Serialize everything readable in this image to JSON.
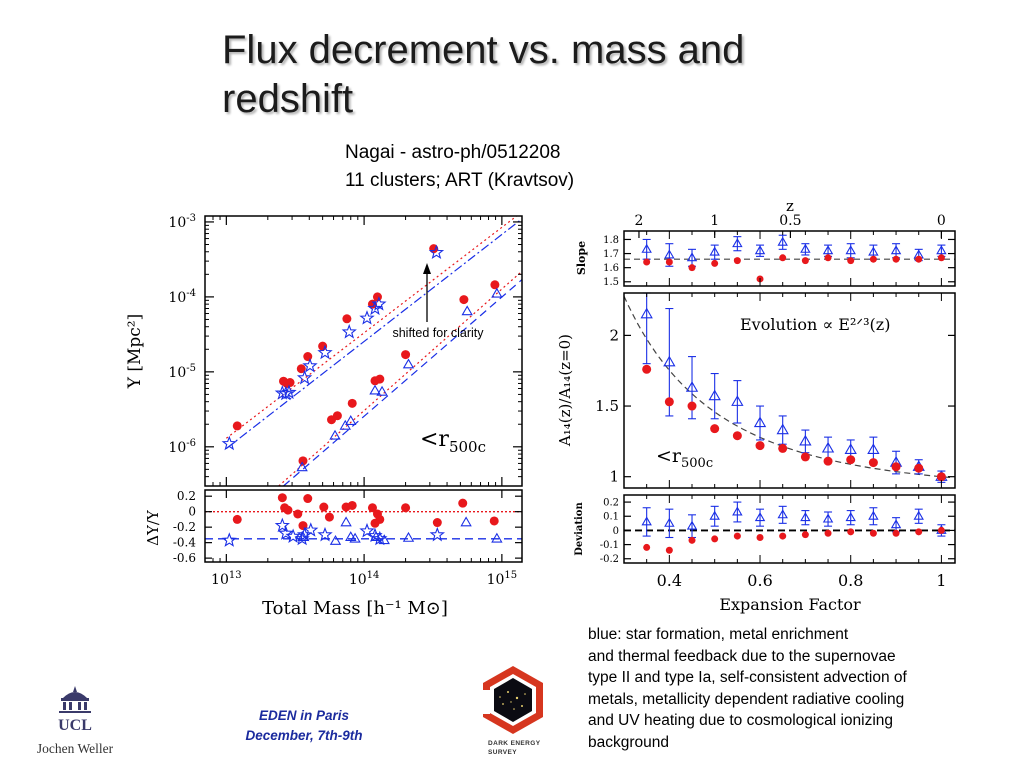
{
  "slide": {
    "title": "Flux decrement vs. mass and redshift",
    "subtitle_lines": [
      "Nagai - astro-ph/0512208",
      "11 clusters;  ART (Kravtsov)"
    ],
    "description_lines": [
      "blue: star formation, metal enrichment",
      "and thermal feedback due to the supernovae",
      "type II and type Ia, self-consistent advection of",
      "metals, metallicity dependent radiative cooling",
      "and UV heating due to cosmological ionizing",
      "background"
    ],
    "event_lines": [
      "EDEN in Paris",
      "December, 7th-9th"
    ],
    "author": "Jochen Weller",
    "ucl_logo_text": "UCL",
    "des_logo_lines": [
      "DARK ENERGY",
      "SURVEY"
    ],
    "arrow_annotation": "shifted for clarity",
    "colors": {
      "red": "#e8181c",
      "blue": "#1a2fe6",
      "event_blue": "#1b2b9e",
      "logo_red": "#d6361f"
    }
  },
  "chart_data": [
    {
      "type": "scatter",
      "panel": "Y-M relation",
      "log_x": true,
      "log_y": true,
      "xlim": [
        7000000000000.0,
        1400000000000000.0
      ],
      "ylim": [
        3e-07,
        0.0012
      ],
      "x_ticks": [
        {
          "v": 10000000000000.0,
          "base": "10",
          "exp": "13"
        },
        {
          "v": 100000000000000.0,
          "base": "10",
          "exp": "14"
        },
        {
          "v": 1000000000000000.0,
          "base": "10",
          "exp": "15"
        }
      ],
      "y_ticks": [
        {
          "v": 0.001,
          "base": "10",
          "exp": "-3"
        },
        {
          "v": 0.0001,
          "base": "10",
          "exp": "-4"
        },
        {
          "v": 1e-05,
          "base": "10",
          "exp": "-5"
        },
        {
          "v": 1e-06,
          "base": "10",
          "exp": "-6"
        }
      ],
      "ylabel": "Y [Mpc²]",
      "legend_text": "<r",
      "legend_sub": "500c",
      "series": [
        {
          "marker": "circle",
          "color": "#e8181c",
          "points": [
            [
              12000000000000.0,
              1.9e-06
            ],
            [
              26000000000000.0,
              7.5e-06
            ],
            [
              27500000000000.0,
              7e-06
            ],
            [
              29000000000000.0,
              7.2e-06
            ],
            [
              35000000000000.0,
              1.1e-05
            ],
            [
              39000000000000.0,
              1.6e-05
            ],
            [
              50000000000000.0,
              2.2e-05
            ],
            [
              75000000000000.0,
              5.1e-05
            ],
            [
              115000000000000.0,
              8e-05
            ],
            [
              125000000000000.0,
              0.0001
            ],
            [
              320000000000000.0,
              0.00044
            ],
            [
              36000000000000.0,
              6.5e-07
            ],
            [
              58000000000000.0,
              2.3e-06
            ],
            [
              64000000000000.0,
              2.6e-06
            ],
            [
              82000000000000.0,
              3.8e-06
            ],
            [
              120000000000000.0,
              7.6e-06
            ],
            [
              130000000000000.0,
              8e-06
            ],
            [
              200000000000000.0,
              1.7e-05
            ],
            [
              530000000000000.0,
              9.2e-05
            ],
            [
              890000000000000.0,
              0.000145
            ]
          ]
        },
        {
          "marker": "star",
          "color": "#1a2fe6",
          "points": [
            [
              10500000000000.0,
              1.1e-06
            ],
            [
              25500000000000.0,
              5.2e-06
            ],
            [
              27000000000000.0,
              5.1e-06
            ],
            [
              28500000000000.0,
              5.3e-06
            ],
            [
              37000000000000.0,
              8.3e-06
            ],
            [
              40500000000000.0,
              1.2e-05
            ],
            [
              52000000000000.0,
              1.8e-05
            ],
            [
              78000000000000.0,
              3.4e-05
            ],
            [
              105000000000000.0,
              5.2e-05
            ],
            [
              120000000000000.0,
              7e-05
            ],
            [
              128000000000000.0,
              8e-05
            ],
            [
              335000000000000.0,
              0.00039
            ]
          ]
        },
        {
          "marker": "triangle",
          "color": "#1a2fe6",
          "points": [
            [
              35500000000000.0,
              5.3e-07
            ],
            [
              61500000000000.0,
              1.4e-06
            ],
            [
              73000000000000.0,
              1.9e-06
            ],
            [
              80000000000000.0,
              2.2e-06
            ],
            [
              120000000000000.0,
              5.6e-06
            ],
            [
              135000000000000.0,
              5.4e-06
            ],
            [
              210000000000000.0,
              1.25e-05
            ],
            [
              560000000000000.0,
              6.4e-05
            ],
            [
              920000000000000.0,
              0.00011
            ]
          ]
        }
      ],
      "fit_lines": [
        {
          "style": "dotted",
          "color": "#e8181c",
          "from": [
            10000000000000.0,
            1.3e-06
          ],
          "to": [
            1400000000000000.0,
            0.00136
          ]
        },
        {
          "style": "dotted",
          "color": "#e8181c",
          "from": [
            24000000000000.0,
            3e-07
          ],
          "to": [
            1400000000000000.0,
            0.00022
          ]
        },
        {
          "style": "dashdot",
          "color": "#1a2fe6",
          "from": [
            10000000000000.0,
            9.5e-07
          ],
          "to": [
            1400000000000000.0,
            0.0011
          ]
        },
        {
          "style": "dashed",
          "color": "#1a2fe6",
          "from": [
            26000000000000.0,
            3e-07
          ],
          "to": [
            1400000000000000.0,
            0.00017
          ]
        }
      ]
    },
    {
      "type": "scatter",
      "panel": "Y-M residuals",
      "log_x": true,
      "xlim": [
        7000000000000.0,
        1400000000000000.0
      ],
      "ylim": [
        -0.65,
        0.28
      ],
      "y_ticks": [
        "0.2",
        "0",
        "-0.2",
        "-0.4",
        "-0.6"
      ],
      "xlabel": "Total Mass [h⁻¹ M⊙]",
      "ylabel": "ΔY/Y",
      "hlines": [
        {
          "y": 0,
          "color": "#e8181c",
          "style": "dotted"
        },
        {
          "y": -0.35,
          "color": "#1a2fe6",
          "style": "dashed"
        }
      ],
      "series": [
        {
          "marker": "circle",
          "color": "#e8181c",
          "points": [
            [
              12000000000000.0,
              -0.1
            ],
            [
              25500000000000.0,
              0.18
            ],
            [
              26500000000000.0,
              0.05
            ],
            [
              28000000000000.0,
              0.02
            ],
            [
              33000000000000.0,
              -0.03
            ],
            [
              36000000000000.0,
              -0.18
            ],
            [
              39000000000000.0,
              0.17
            ],
            [
              51000000000000.0,
              0.06
            ],
            [
              56000000000000.0,
              -0.07
            ],
            [
              74000000000000.0,
              0.06
            ],
            [
              82000000000000.0,
              0.08
            ],
            [
              115000000000000.0,
              0.05
            ],
            [
              125000000000000.0,
              -0.03
            ],
            [
              130000000000000.0,
              -0.1
            ],
            [
              120000000000000.0,
              -0.15
            ],
            [
              200000000000000.0,
              0.05
            ],
            [
              340000000000000.0,
              -0.14
            ],
            [
              520000000000000.0,
              0.11
            ],
            [
              880000000000000.0,
              -0.12
            ]
          ]
        },
        {
          "marker": "star",
          "color": "#1a2fe6",
          "points": [
            [
              10500000000000.0,
              -0.37
            ],
            [
              25500000000000.0,
              -0.18
            ],
            [
              27000000000000.0,
              -0.28
            ],
            [
              30500000000000.0,
              -0.32
            ],
            [
              35500000000000.0,
              -0.35
            ],
            [
              37000000000000.0,
              -0.3
            ],
            [
              41000000000000.0,
              -0.24
            ],
            [
              52000000000000.0,
              -0.3
            ],
            [
              105000000000000.0,
              -0.25
            ],
            [
              120000000000000.0,
              -0.31
            ],
            [
              130000000000000.0,
              -0.35
            ],
            [
              340000000000000.0,
              -0.3
            ]
          ]
        },
        {
          "marker": "triangle",
          "color": "#1a2fe6",
          "points": [
            [
              36000000000000.0,
              -0.33
            ],
            [
              62000000000000.0,
              -0.38
            ],
            [
              74000000000000.0,
              -0.14
            ],
            [
              80000000000000.0,
              -0.33
            ],
            [
              86000000000000.0,
              -0.35
            ],
            [
              122000000000000.0,
              -0.33
            ],
            [
              140000000000000.0,
              -0.37
            ],
            [
              210000000000000.0,
              -0.34
            ],
            [
              550000000000000.0,
              -0.14
            ],
            [
              920000000000000.0,
              -0.35
            ]
          ]
        }
      ]
    },
    {
      "type": "scatter",
      "panel": "Slope",
      "top_axis_label": "z",
      "top_ticks": [
        {
          "label": "2",
          "a": 0.333
        },
        {
          "label": "1",
          "a": 0.5
        },
        {
          "label": "0.5",
          "a": 0.667
        },
        {
          "label": "0",
          "a": 1.0
        }
      ],
      "xlim": [
        0.3,
        1.03
      ],
      "ylim": [
        1.47,
        1.86
      ],
      "y_ticks": [
        "1.8",
        "1.7",
        "1.6",
        "1.5"
      ],
      "ylabel": "Slope",
      "hline": 1.66,
      "red_points": [
        [
          0.35,
          1.64
        ],
        [
          0.4,
          1.64
        ],
        [
          0.45,
          1.6
        ],
        [
          0.5,
          1.63
        ],
        [
          0.55,
          1.65
        ],
        [
          0.6,
          1.52
        ],
        [
          0.65,
          1.67
        ],
        [
          0.7,
          1.65
        ],
        [
          0.75,
          1.67
        ],
        [
          0.8,
          1.65
        ],
        [
          0.85,
          1.66
        ],
        [
          0.9,
          1.66
        ],
        [
          0.95,
          1.66
        ],
        [
          1.0,
          1.67
        ]
      ],
      "blue_points": [
        [
          0.35,
          1.73,
          0.07
        ],
        [
          0.4,
          1.69,
          0.08
        ],
        [
          0.45,
          1.67,
          0.06
        ],
        [
          0.5,
          1.71,
          0.05
        ],
        [
          0.55,
          1.77,
          0.05
        ],
        [
          0.6,
          1.72,
          0.04
        ],
        [
          0.65,
          1.78,
          0.05
        ],
        [
          0.7,
          1.73,
          0.04
        ],
        [
          0.75,
          1.72,
          0.04
        ],
        [
          0.8,
          1.72,
          0.05
        ],
        [
          0.85,
          1.71,
          0.05
        ],
        [
          0.9,
          1.72,
          0.05
        ],
        [
          0.95,
          1.69,
          0.04
        ],
        [
          1.0,
          1.72,
          0.04
        ]
      ]
    },
    {
      "type": "scatter",
      "panel": "Evolution",
      "xlim": [
        0.3,
        1.03
      ],
      "ylim": [
        0.92,
        2.3
      ],
      "y_ticks": [
        "2",
        "1.5",
        "1"
      ],
      "ylabel": "A₁₄(z)/A₁₄(z=0)",
      "annotation": "Evolution ∝ E²ᐟ³(z)",
      "legend_text": "<r",
      "legend_sub": "500c",
      "model": "E^(2/3)(z)",
      "red_points": [
        [
          0.35,
          1.76
        ],
        [
          0.4,
          1.53
        ],
        [
          0.45,
          1.5
        ],
        [
          0.5,
          1.34
        ],
        [
          0.55,
          1.29
        ],
        [
          0.6,
          1.22
        ],
        [
          0.65,
          1.2
        ],
        [
          0.7,
          1.14
        ],
        [
          0.75,
          1.11
        ],
        [
          0.8,
          1.12
        ],
        [
          0.85,
          1.1
        ],
        [
          0.9,
          1.07
        ],
        [
          0.95,
          1.06
        ],
        [
          1.0,
          1.0
        ]
      ],
      "blue_points": [
        [
          0.35,
          2.15,
          0.35
        ],
        [
          0.4,
          1.81,
          0.38
        ],
        [
          0.45,
          1.63,
          0.22
        ],
        [
          0.5,
          1.57,
          0.16
        ],
        [
          0.55,
          1.53,
          0.15
        ],
        [
          0.6,
          1.38,
          0.12
        ],
        [
          0.65,
          1.33,
          0.1
        ],
        [
          0.7,
          1.25,
          0.08
        ],
        [
          0.75,
          1.2,
          0.08
        ],
        [
          0.8,
          1.19,
          0.07
        ],
        [
          0.85,
          1.19,
          0.09
        ],
        [
          0.9,
          1.1,
          0.08
        ],
        [
          0.95,
          1.07,
          0.05
        ],
        [
          1.0,
          1.0,
          0.04
        ]
      ]
    },
    {
      "type": "scatter",
      "panel": "Deviation",
      "xlim": [
        0.3,
        1.03
      ],
      "ylim": [
        -0.23,
        0.25
      ],
      "x_ticks": [
        "0.4",
        "0.6",
        "0.8",
        "1"
      ],
      "y_ticks": [
        "0.2",
        "0.1",
        "0",
        "-0.1",
        "-0.2"
      ],
      "xlabel": "Expansion Factor",
      "ylabel": "Deviation",
      "red_points": [
        [
          0.35,
          -0.12
        ],
        [
          0.4,
          -0.14
        ],
        [
          0.45,
          -0.07
        ],
        [
          0.5,
          -0.06
        ],
        [
          0.55,
          -0.04
        ],
        [
          0.6,
          -0.05
        ],
        [
          0.65,
          -0.04
        ],
        [
          0.7,
          -0.03
        ],
        [
          0.75,
          -0.02
        ],
        [
          0.8,
          -0.01
        ],
        [
          0.85,
          -0.02
        ],
        [
          0.9,
          -0.02
        ],
        [
          0.95,
          -0.01
        ],
        [
          1.0,
          0.0
        ]
      ],
      "blue_points": [
        [
          0.35,
          0.06,
          0.1
        ],
        [
          0.4,
          0.05,
          0.1
        ],
        [
          0.45,
          0.03,
          0.08
        ],
        [
          0.5,
          0.1,
          0.07
        ],
        [
          0.55,
          0.13,
          0.07
        ],
        [
          0.6,
          0.09,
          0.06
        ],
        [
          0.65,
          0.11,
          0.06
        ],
        [
          0.7,
          0.09,
          0.05
        ],
        [
          0.75,
          0.08,
          0.05
        ],
        [
          0.8,
          0.09,
          0.05
        ],
        [
          0.85,
          0.1,
          0.06
        ],
        [
          0.9,
          0.04,
          0.05
        ],
        [
          0.95,
          0.1,
          0.05
        ],
        [
          1.0,
          0.0,
          0.04
        ]
      ]
    }
  ]
}
